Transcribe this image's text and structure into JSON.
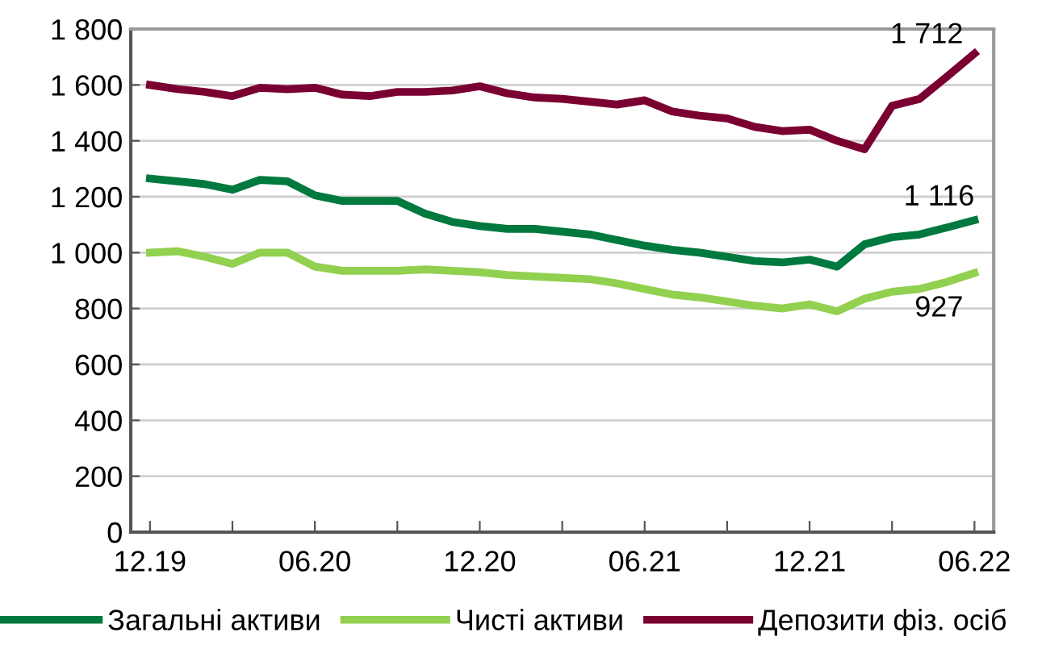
{
  "chart_data": {
    "type": "line",
    "categories": [
      "12.19",
      null,
      null,
      null,
      null,
      null,
      "06.20",
      null,
      null,
      null,
      null,
      null,
      "12.20",
      null,
      null,
      null,
      null,
      null,
      "06.21",
      null,
      null,
      null,
      null,
      null,
      "12.21",
      null,
      null,
      null,
      null,
      null,
      "06.22"
    ],
    "series": [
      {
        "name": "Загальні активи",
        "color": "#00793f",
        "values": [
          1265,
          1255,
          1245,
          1225,
          1260,
          1255,
          1205,
          1185,
          1185,
          1185,
          1140,
          1110,
          1095,
          1085,
          1085,
          1075,
          1065,
          1045,
          1025,
          1010,
          1000,
          985,
          970,
          965,
          975,
          950,
          1030,
          1055,
          1065,
          1090,
          1116
        ],
        "value_labels": [
          null,
          null,
          null,
          null,
          null,
          null,
          null,
          null,
          null,
          null,
          null,
          null,
          null,
          null,
          null,
          null,
          null,
          null,
          null,
          null,
          null,
          null,
          null,
          null,
          null,
          null,
          null,
          null,
          null,
          null,
          "1 116"
        ]
      },
      {
        "name": "Чисті активи",
        "color": "#92d050",
        "values": [
          1000,
          1005,
          985,
          960,
          1000,
          1000,
          950,
          935,
          935,
          935,
          940,
          935,
          930,
          920,
          915,
          910,
          905,
          890,
          870,
          850,
          840,
          825,
          810,
          800,
          815,
          790,
          835,
          860,
          870,
          895,
          927
        ],
        "value_labels": [
          null,
          null,
          null,
          null,
          null,
          null,
          null,
          null,
          null,
          null,
          null,
          null,
          null,
          null,
          null,
          null,
          null,
          null,
          null,
          null,
          null,
          null,
          null,
          null,
          null,
          null,
          null,
          null,
          null,
          null,
          "927"
        ]
      },
      {
        "name": "Депозити фіз. осіб",
        "color": "#7b0032",
        "values": [
          1600,
          1585,
          1575,
          1560,
          1590,
          1585,
          1590,
          1565,
          1560,
          1575,
          1575,
          1580,
          1595,
          1570,
          1555,
          1550,
          1540,
          1530,
          1545,
          1505,
          1490,
          1480,
          1450,
          1435,
          1440,
          1400,
          1370,
          1525,
          1550,
          1630,
          1712
        ],
        "value_labels": [
          null,
          null,
          null,
          null,
          null,
          null,
          null,
          null,
          null,
          null,
          null,
          null,
          null,
          null,
          null,
          null,
          null,
          null,
          null,
          null,
          null,
          null,
          null,
          null,
          null,
          null,
          null,
          null,
          null,
          null,
          "1 712"
        ]
      }
    ],
    "ylim": [
      0,
      1800
    ],
    "yticks": [
      0,
      {
        "value": 200,
        "label": "200"
      },
      {
        "value": 400,
        "label": "400"
      },
      {
        "value": 600,
        "label": "600"
      },
      {
        "value": 800,
        "label": "800"
      },
      {
        "value": 1000,
        "label": "1 000"
      },
      {
        "value": 1200,
        "label": "1 200"
      },
      {
        "value": 1400,
        "label": "1 400"
      },
      {
        "value": 1600,
        "label": "1 600"
      },
      {
        "value": 1800,
        "label": "1 800"
      }
    ],
    "grid": "y",
    "legend": "bottom",
    "marker": "none",
    "line_style": "solid"
  }
}
